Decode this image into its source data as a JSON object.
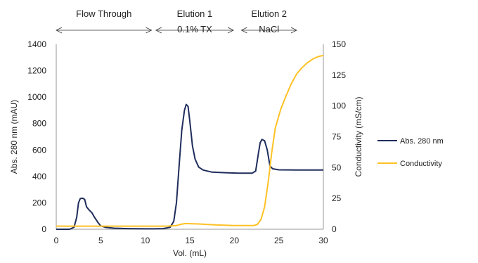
{
  "chart_data": {
    "type": "line",
    "xlabel": "Vol. (mL)",
    "ylabel": "Abs. 280 nm (mAU)",
    "y2label": "Conductivity (mS/cm)",
    "xlim": [
      0,
      30
    ],
    "ylim": [
      0,
      1400
    ],
    "y2lim": [
      0,
      150
    ],
    "xticks": [
      "0",
      "5",
      "10",
      "15",
      "20",
      "25",
      "30"
    ],
    "yticks": [
      "0",
      "200",
      "400",
      "600",
      "800",
      "1000",
      "1200",
      "1400"
    ],
    "y2ticks": [
      "0",
      "25",
      "50",
      "75",
      "100",
      "125",
      "150"
    ],
    "grid": false,
    "legend_position": "right",
    "phases": [
      {
        "label": "Flow Through",
        "label2": "",
        "from": 0,
        "to": 10.7
      },
      {
        "label": "Elution 1",
        "label2": "0.1% TX",
        "from": 11.2,
        "to": 19.9
      },
      {
        "label": "Elution 2",
        "label2": "NaCl",
        "from": 20.8,
        "to": 27.0
      }
    ],
    "series": [
      {
        "name": "Abs. 280 nm",
        "axis": "left",
        "color": "#1f2d5c",
        "points": [
          [
            0,
            0
          ],
          [
            1.5,
            0
          ],
          [
            2.0,
            15
          ],
          [
            2.3,
            90
          ],
          [
            2.5,
            200
          ],
          [
            2.7,
            232
          ],
          [
            3.0,
            235
          ],
          [
            3.2,
            225
          ],
          [
            3.4,
            170
          ],
          [
            3.7,
            145
          ],
          [
            4.0,
            125
          ],
          [
            4.3,
            90
          ],
          [
            4.7,
            50
          ],
          [
            5.0,
            25
          ],
          [
            5.5,
            15
          ],
          [
            6.5,
            8
          ],
          [
            8.0,
            5
          ],
          [
            10.0,
            3
          ],
          [
            11.0,
            3
          ],
          [
            12.0,
            5
          ],
          [
            12.8,
            15
          ],
          [
            13.2,
            60
          ],
          [
            13.5,
            200
          ],
          [
            13.8,
            480
          ],
          [
            14.1,
            750
          ],
          [
            14.4,
            900
          ],
          [
            14.6,
            945
          ],
          [
            14.8,
            930
          ],
          [
            15.0,
            820
          ],
          [
            15.3,
            630
          ],
          [
            15.6,
            530
          ],
          [
            16.0,
            470
          ],
          [
            16.5,
            448
          ],
          [
            17.5,
            432
          ],
          [
            19.0,
            428
          ],
          [
            20.5,
            425
          ],
          [
            22.0,
            425
          ],
          [
            22.4,
            440
          ],
          [
            22.7,
            570
          ],
          [
            22.9,
            655
          ],
          [
            23.1,
            680
          ],
          [
            23.4,
            670
          ],
          [
            23.7,
            600
          ],
          [
            24.0,
            480
          ],
          [
            24.3,
            458
          ],
          [
            25.0,
            450
          ],
          [
            27.0,
            448
          ],
          [
            30.0,
            448
          ]
        ]
      },
      {
        "name": "Conductivity",
        "axis": "right",
        "color": "#ffc125",
        "points": [
          [
            0,
            2.5
          ],
          [
            5,
            2.5
          ],
          [
            10,
            2.5
          ],
          [
            12.5,
            2.5
          ],
          [
            13.5,
            3.0
          ],
          [
            14.0,
            4.0
          ],
          [
            14.5,
            4.6
          ],
          [
            16.0,
            4.3
          ],
          [
            18.0,
            3.5
          ],
          [
            20.0,
            3.0
          ],
          [
            22.2,
            3.0
          ],
          [
            22.6,
            4.0
          ],
          [
            23.0,
            8.0
          ],
          [
            23.4,
            18.0
          ],
          [
            23.8,
            38.0
          ],
          [
            24.2,
            62.0
          ],
          [
            24.6,
            82.0
          ],
          [
            25.2,
            97.0
          ],
          [
            25.8,
            108.0
          ],
          [
            26.4,
            118.0
          ],
          [
            27.0,
            126.0
          ],
          [
            27.6,
            131.0
          ],
          [
            28.2,
            135.0
          ],
          [
            28.8,
            138.0
          ],
          [
            29.4,
            140.0
          ],
          [
            30.0,
            141.0
          ]
        ]
      }
    ]
  }
}
